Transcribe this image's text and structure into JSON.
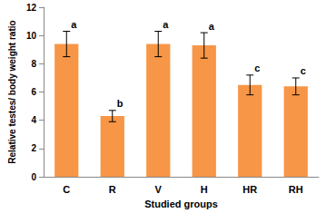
{
  "chart_data": {
    "type": "bar",
    "x_label": "Studied groups",
    "y_label": "Relative testes/ body weight ratio",
    "categories": [
      "C",
      "R",
      "V",
      "H",
      "HR",
      "RH"
    ],
    "values": [
      9.4,
      4.3,
      9.4,
      9.3,
      6.5,
      6.4
    ],
    "errors": [
      0.9,
      0.4,
      0.9,
      0.9,
      0.7,
      0.6
    ],
    "annotations": [
      "a",
      "b",
      "a",
      "a",
      "c",
      "c"
    ],
    "color": "#f79646",
    "ylim": [
      0,
      12
    ],
    "yticks": [
      0,
      2,
      4,
      6,
      8,
      10,
      12
    ],
    "grid": false
  }
}
